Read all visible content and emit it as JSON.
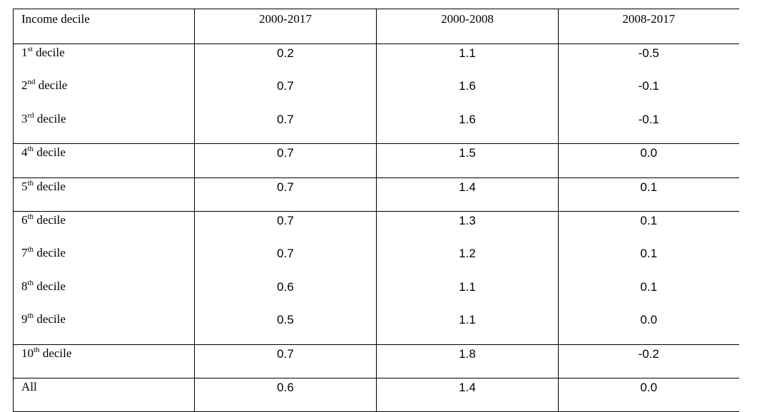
{
  "table": {
    "headers": [
      "Income decile",
      "2000-2017",
      "2000-2008",
      "2008-2017"
    ],
    "rows": [
      {
        "num": "1",
        "sup": "st",
        "word": " decile",
        "values": [
          "0.2",
          "1.1",
          "-0.5"
        ]
      },
      {
        "num": "2",
        "sup": "nd",
        "word": " decile",
        "values": [
          "0.7",
          "1.6",
          "-0.1"
        ]
      },
      {
        "num": "3",
        "sup": "rd",
        "word": " decile",
        "values": [
          "0.7",
          "1.6",
          "-0.1"
        ]
      },
      {
        "num": "4",
        "sup": "th",
        "word": " decile",
        "values": [
          "0.7",
          "1.5",
          "0.0"
        ]
      },
      {
        "num": "5",
        "sup": "th",
        "word": " decile",
        "values": [
          "0.7",
          "1.4",
          "0.1"
        ]
      },
      {
        "num": "6",
        "sup": "th",
        "word": " decile",
        "values": [
          "0.7",
          "1.3",
          "0.1"
        ]
      },
      {
        "num": "7",
        "sup": "th",
        "word": " decile",
        "values": [
          "0.7",
          "1.2",
          "0.1"
        ]
      },
      {
        "num": "8",
        "sup": "th",
        "word": " decile",
        "values": [
          "0.6",
          "1.1",
          "0.1"
        ]
      },
      {
        "num": "9",
        "sup": "th",
        "word": " decile",
        "values": [
          "0.5",
          "1.1",
          "0.0"
        ]
      },
      {
        "num": "10",
        "sup": "th",
        "word": " decile",
        "values": [
          "0.7",
          "1.8",
          "-0.2"
        ]
      },
      {
        "num": "All",
        "sup": "",
        "word": "",
        "values": [
          "0.6",
          "1.4",
          "0.0"
        ]
      }
    ]
  }
}
